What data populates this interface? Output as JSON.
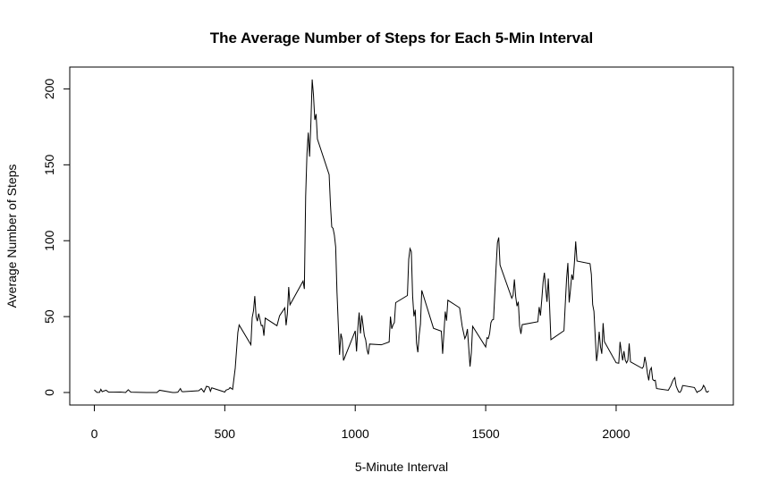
{
  "chart_data": {
    "type": "line",
    "title": "The Average Number of Steps for Each 5-Min Interval",
    "xlabel": "5-Minute Interval",
    "ylabel": "Average Number of Steps",
    "color": "#000000",
    "xlim": [
      -94.2,
      2449.2
    ],
    "xticks": [
      0,
      500,
      1000,
      1500,
      2000
    ],
    "ylim": [
      -8.25,
      214.4
    ],
    "yticks": [
      0,
      50,
      100,
      150,
      200
    ],
    "x": [
      0,
      10,
      20,
      25,
      30,
      35,
      45,
      55,
      100,
      120,
      130,
      140,
      200,
      230,
      240,
      250,
      300,
      310,
      320,
      330,
      335,
      340,
      400,
      410,
      420,
      430,
      440,
      445,
      450,
      500,
      505,
      515,
      520,
      530,
      540,
      550,
      555,
      600,
      605,
      610,
      615,
      620,
      625,
      630,
      640,
      645,
      650,
      655,
      700,
      710,
      730,
      735,
      740,
      745,
      750,
      800,
      805,
      810,
      815,
      820,
      825,
      830,
      835,
      840,
      845,
      850,
      855,
      900,
      905,
      910,
      915,
      920,
      925,
      930,
      935,
      940,
      945,
      950,
      955,
      1000,
      1005,
      1010,
      1015,
      1020,
      1025,
      1030,
      1035,
      1040,
      1045,
      1050,
      1055,
      1100,
      1130,
      1135,
      1140,
      1145,
      1150,
      1155,
      1200,
      1205,
      1210,
      1215,
      1220,
      1225,
      1230,
      1235,
      1240,
      1245,
      1250,
      1255,
      1300,
      1330,
      1335,
      1340,
      1345,
      1350,
      1355,
      1400,
      1410,
      1420,
      1425,
      1430,
      1440,
      1445,
      1450,
      1500,
      1505,
      1510,
      1515,
      1520,
      1525,
      1530,
      1535,
      1540,
      1545,
      1550,
      1555,
      1600,
      1605,
      1610,
      1615,
      1620,
      1625,
      1630,
      1635,
      1640,
      1700,
      1705,
      1710,
      1715,
      1720,
      1725,
      1730,
      1735,
      1740,
      1745,
      1750,
      1800,
      1805,
      1810,
      1815,
      1820,
      1825,
      1830,
      1835,
      1840,
      1845,
      1850,
      1900,
      1905,
      1910,
      1915,
      1920,
      1925,
      1930,
      1935,
      1940,
      1945,
      1950,
      1955,
      2000,
      2010,
      2015,
      2020,
      2025,
      2030,
      2035,
      2040,
      2045,
      2050,
      2055,
      2100,
      2105,
      2110,
      2115,
      2120,
      2125,
      2130,
      2135,
      2140,
      2145,
      2150,
      2155,
      2200,
      2210,
      2215,
      2220,
      2225,
      2230,
      2235,
      2240,
      2245,
      2250,
      2255,
      2300,
      2310,
      2315,
      2320,
      2325,
      2330,
      2335,
      2340,
      2345,
      2350,
      2355
    ],
    "values": [
      1.7,
      0.1,
      0.1,
      2.1,
      0.5,
      0.9,
      1.5,
      0.2,
      0.3,
      0,
      1.8,
      0.2,
      0,
      0,
      0,
      1.5,
      0,
      0,
      0.2,
      2.6,
      0.7,
      0.5,
      1.2,
      2.6,
      0.3,
      4.1,
      3.5,
      0.8,
      3.1,
      0.3,
      1.6,
      2.2,
      3.3,
      2.1,
      16,
      39.5,
      44.5,
      31.5,
      49.3,
      53.8,
      63.5,
      50,
      47,
      52,
      44,
      44.2,
      37.4,
      49,
      44,
      50.5,
      55.7,
      44.3,
      52,
      69.5,
      57.8,
      73.4,
      68.2,
      129.4,
      157.5,
      171.2,
      155.4,
      177.3,
      206.2,
      195.9,
      179.6,
      183.4,
      167,
      143.5,
      124,
      109.1,
      108.1,
      103.7,
      96,
      66.2,
      45.2,
      24.8,
      38.8,
      35,
      21.1,
      40.6,
      27,
      42.4,
      52.7,
      38.9,
      50.8,
      44.3,
      37.4,
      34.7,
      28.3,
      25.1,
      31.9,
      31.4,
      33.3,
      50,
      42,
      44.6,
      46,
      59.2,
      63.9,
      87.7,
      94.8,
      92.8,
      63.4,
      50.2,
      54.5,
      32.4,
      26.5,
      37.7,
      45,
      67.3,
      42.3,
      40.4,
      25.5,
      39.3,
      53.3,
      47.3,
      60.8,
      55.8,
      43.6,
      35.5,
      37.5,
      41.8,
      17.1,
      26.1,
      43.6,
      30,
      36.1,
      35.5,
      38.8,
      46,
      47.8,
      48.1,
      65.3,
      82.9,
      98.7,
      102.1,
      84,
      62.1,
      64.1,
      74.5,
      63.2,
      56.9,
      59.8,
      43.9,
      38.6,
      44.7,
      46.6,
      56.3,
      50.7,
      61.2,
      72.7,
      78.9,
      68.9,
      59.7,
      75.1,
      56.5,
      34.8,
      40.7,
      58,
      74.7,
      85.3,
      59.3,
      67.8,
      77.7,
      74.2,
      85.3,
      99.5,
      86.6,
      84.9,
      77.8,
      58,
      53.4,
      36.3,
      20.7,
      27.4,
      40,
      30.2,
      25.5,
      45.7,
      33.5,
      19.6,
      19.3,
      33.3,
      26.8,
      21.2,
      27.3,
      21.3,
      19.5,
      21.3,
      32.3,
      20.2,
      15.9,
      17.2,
      23.5,
      19.2,
      12.5,
      8,
      14.7,
      16.3,
      8.7,
      7.8,
      8.1,
      2.6,
      1.5,
      4.6,
      6.9,
      8.7,
      9.8,
      4.3,
      2.2,
      0.3,
      0.1,
      1.6,
      4.6,
      3.3,
      0,
      0.8,
      1,
      1.6,
      2.6,
      4.7,
      3.3,
      0.6,
      0.2,
      1.1
    ]
  }
}
